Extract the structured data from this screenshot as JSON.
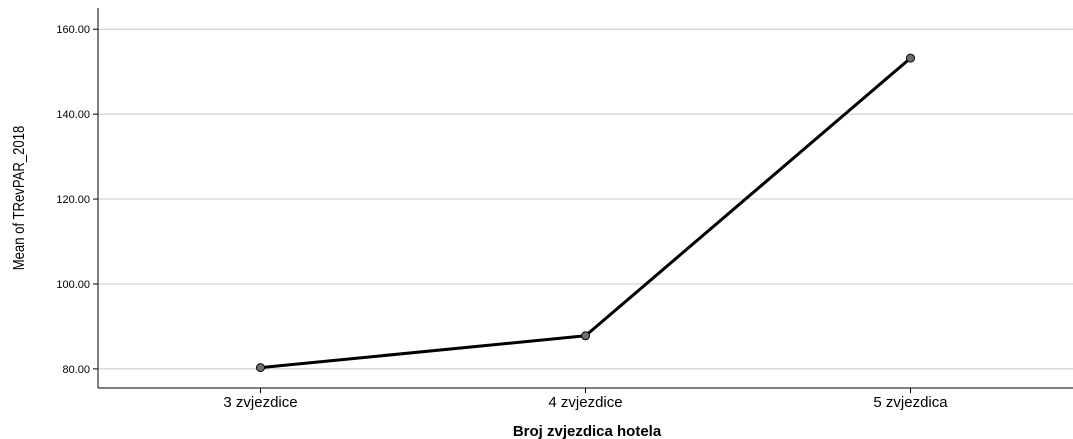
{
  "chart_data": {
    "type": "line",
    "categories": [
      "3 zvjezdice",
      "4 zvjezdice",
      "5 zvjezdica"
    ],
    "series": [
      {
        "values": [
          80.3,
          87.8,
          153.2
        ]
      }
    ],
    "xlabel": "Broj zvjezdica hotela",
    "ylabel": "Mean of TRevPAR_2018",
    "ylim": [
      75.5,
      165
    ],
    "yticks": [
      "80.00",
      "100.00",
      "120.00",
      "140.00",
      "160.00"
    ],
    "grid": true,
    "colors": {
      "line": "#000000",
      "marker_fill": "#6e6e6e",
      "gridline": "#c8c8c8",
      "axis": "#000000"
    }
  }
}
